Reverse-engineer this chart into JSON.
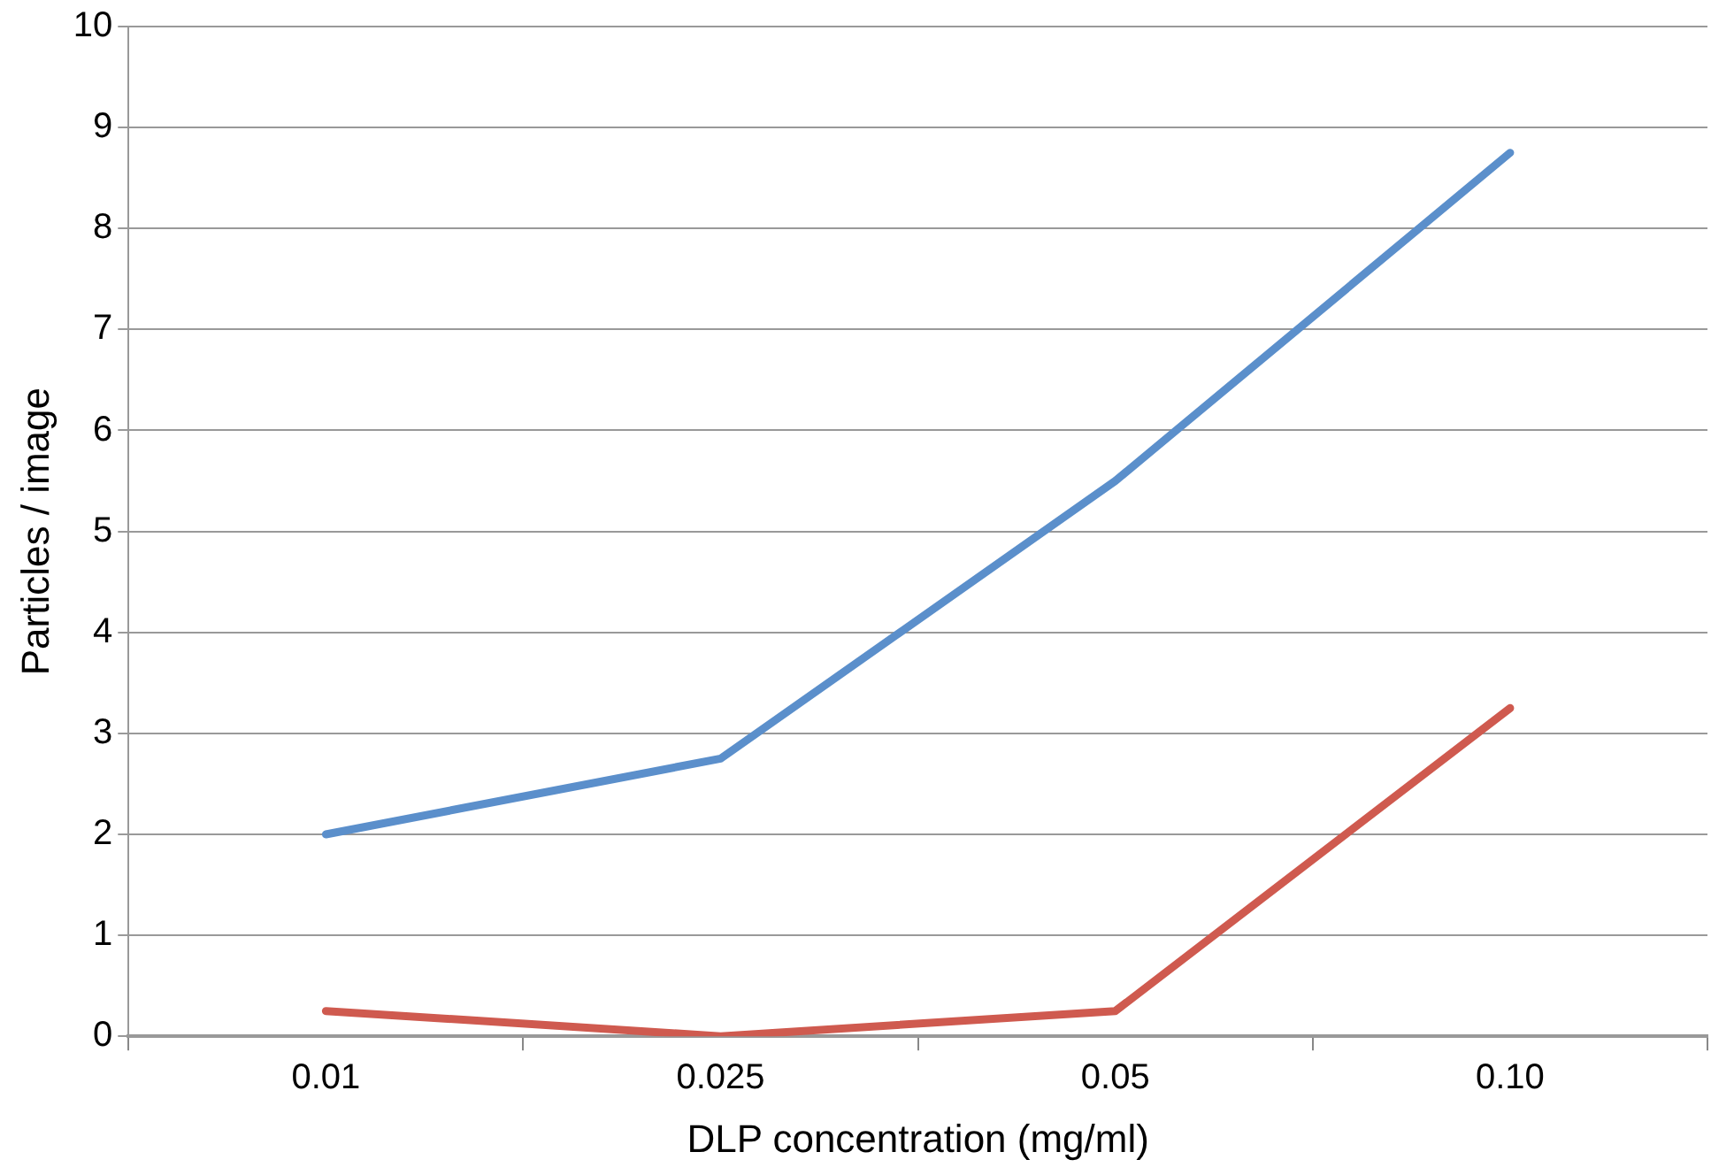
{
  "chart_data": {
    "type": "line",
    "xlabel": "DLP concentration (mg/ml)",
    "ylabel": "Particles / image",
    "categories": [
      "0.01",
      "0.025",
      "0.05",
      "0.10"
    ],
    "series": [
      {
        "color": "#5b8fcb",
        "values": [
          2,
          2.75,
          5.5,
          8.75
        ]
      },
      {
        "color": "#cf5a4f",
        "values": [
          0.25,
          0,
          0.25,
          3.25
        ]
      }
    ],
    "ylim": [
      0,
      10
    ],
    "yticks": [
      0,
      1,
      2,
      3,
      4,
      5,
      6,
      7,
      8,
      9,
      10
    ],
    "grid": "y",
    "legend": false,
    "marker": "none",
    "line_style": "solid"
  }
}
